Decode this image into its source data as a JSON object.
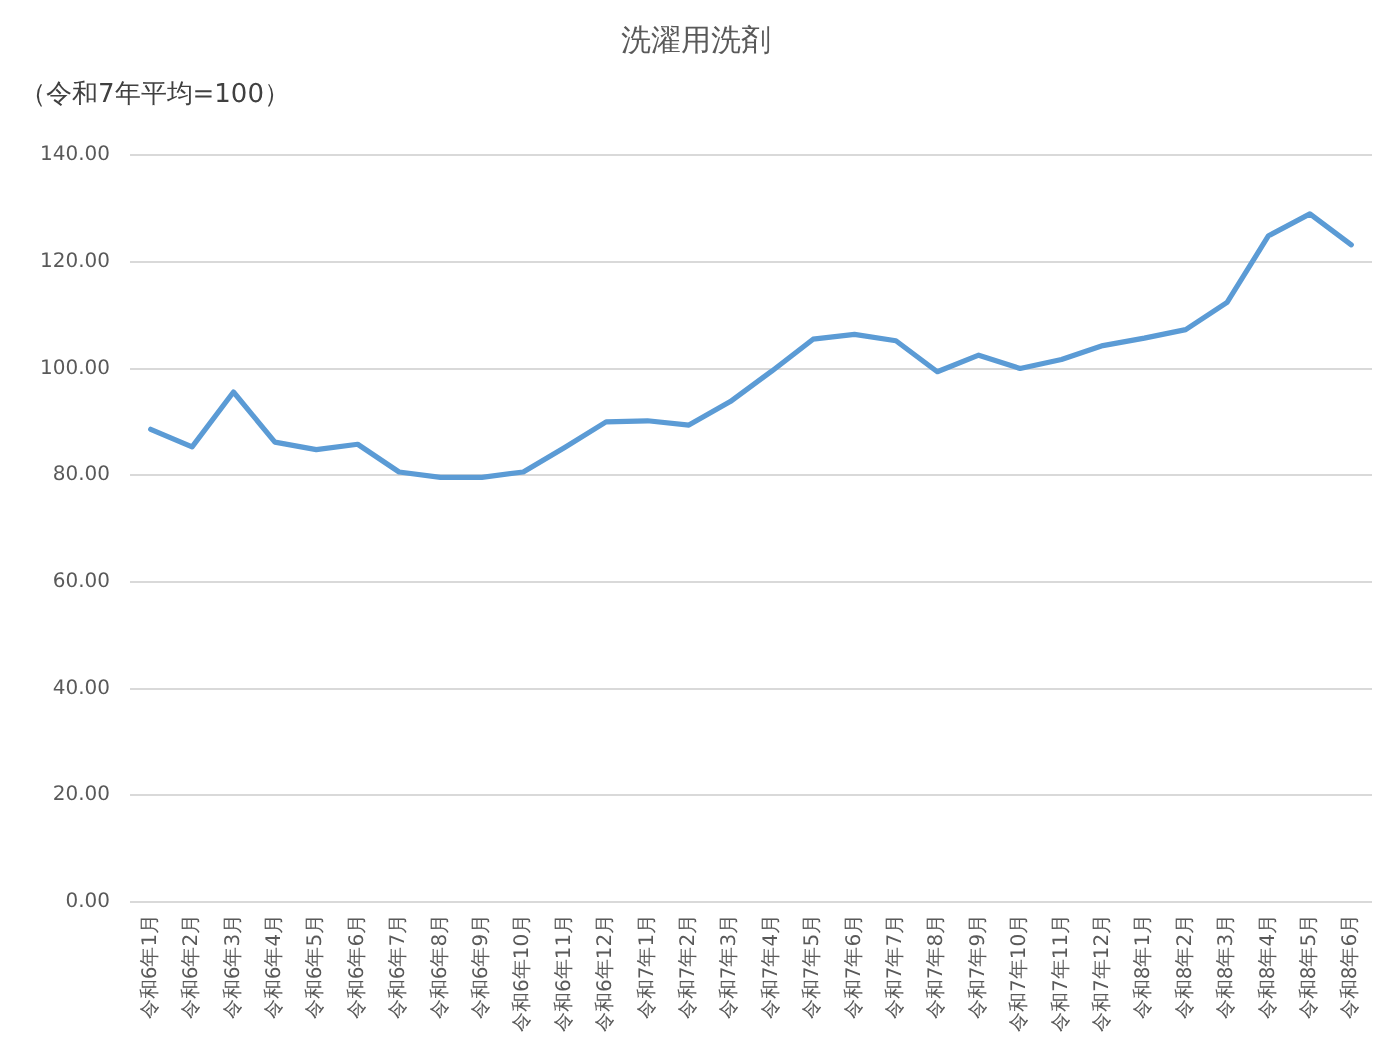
{
  "chart_data": {
    "type": "line",
    "title": "洗濯用洗剤",
    "subtitle": "（令和7年平均=100）",
    "categories": [
      "令和6年1月",
      "令和6年2月",
      "令和6年3月",
      "令和6年4月",
      "令和6年5月",
      "令和6年6月",
      "令和6年7月",
      "令和6年8月",
      "令和6年9月",
      "令和6年10月",
      "令和6年11月",
      "令和6年12月",
      "令和7年1月",
      "令和7年2月",
      "令和7年3月",
      "令和7年4月",
      "令和7年5月",
      "令和7年6月",
      "令和7年7月",
      "令和7年8月",
      "令和7年9月",
      "令和7年10月",
      "令和7年11月",
      "令和7年12月",
      "令和8年1月",
      "令和8年2月",
      "令和8年3月",
      "令和8年4月",
      "令和8年5月",
      "令和8年6月"
    ],
    "series": [
      {
        "color": "#5b9bd5",
        "values": [
          88.6,
          85.3,
          95.6,
          86.2,
          84.8,
          85.8,
          80.6,
          79.6,
          79.6,
          80.6,
          85.2,
          90.0,
          90.2,
          89.4,
          93.8,
          99.5,
          105.5,
          106.4,
          105.2,
          99.4,
          102.5,
          100.0,
          101.7,
          104.3,
          105.7,
          107.3,
          112.4,
          124.9,
          129.0,
          123.2
        ]
      }
    ],
    "ylim": [
      0,
      140
    ],
    "yticks": [
      {
        "value": 0,
        "label": "0.00"
      },
      {
        "value": 20,
        "label": "20.00"
      },
      {
        "value": 40,
        "label": "40.00"
      },
      {
        "value": 60,
        "label": "60.00"
      },
      {
        "value": 80,
        "label": "80.00"
      },
      {
        "value": 100,
        "label": "100.00"
      },
      {
        "value": 120,
        "label": "120.00"
      },
      {
        "value": 140,
        "label": "140.00"
      }
    ],
    "grid": "y",
    "legend": false
  }
}
